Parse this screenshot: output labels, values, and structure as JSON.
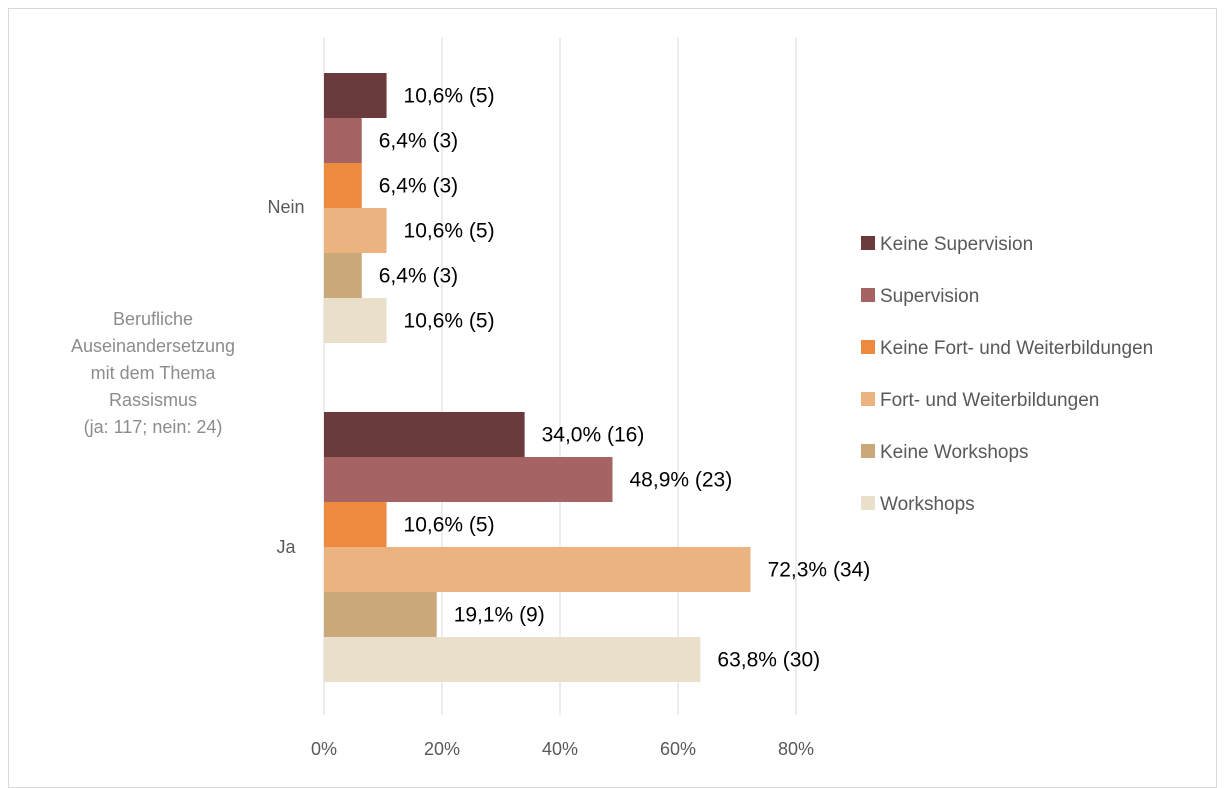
{
  "chart_data": {
    "type": "bar",
    "orientation": "horizontal",
    "ylabel_lines": [
      "Berufliche",
      "Auseinandersetzung",
      "mit dem Thema",
      "Rassismus",
      "(ja: 117; nein: 24)"
    ],
    "categories": [
      "Nein",
      "Ja"
    ],
    "xlim": [
      0,
      80
    ],
    "x_ticks": [
      "0%",
      "20%",
      "40%",
      "60%",
      "80%"
    ],
    "x_tick_values": [
      0,
      20,
      40,
      60,
      80
    ],
    "grid": true,
    "legend_position": "right",
    "series": [
      {
        "name": "Keine Supervision",
        "color": "#6b3a3c",
        "values": [
          10.6,
          34.0
        ],
        "labels": [
          "10,6% (5)",
          "34,0% (16)"
        ]
      },
      {
        "name": "Supervision",
        "color": "#a56363",
        "values": [
          6.4,
          48.9
        ],
        "labels": [
          "6,4% (3)",
          "48,9% (23)"
        ]
      },
      {
        "name": "Keine Fort- und Weiterbildungen",
        "color": "#ed8a3f",
        "values": [
          6.4,
          10.6
        ],
        "labels": [
          "6,4% (3)",
          "10,6% (5)"
        ]
      },
      {
        "name": "Fort- und Weiterbildungen",
        "color": "#ebb380",
        "values": [
          10.6,
          72.3
        ],
        "labels": [
          "10,6% (5)",
          "72,3% (34)"
        ]
      },
      {
        "name": "Keine Workshops",
        "color": "#c9a87a",
        "values": [
          6.4,
          19.1
        ],
        "labels": [
          "6,4% (3)",
          "19,1% (9)"
        ]
      },
      {
        "name": "Workshops",
        "color": "#eadfcb",
        "values": [
          10.6,
          63.8
        ],
        "labels": [
          "10,6% (5)",
          "63,8% (30)"
        ]
      }
    ]
  }
}
